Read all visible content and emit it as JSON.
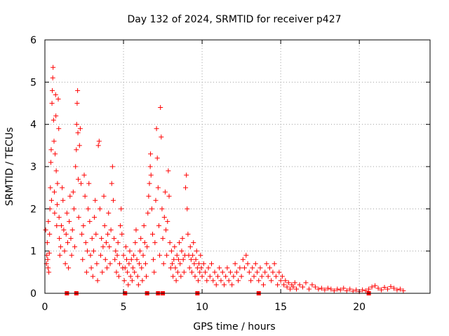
{
  "chart_data": {
    "type": "scatter",
    "title": "Day 132 of 2024, SRMTID for receiver p427",
    "xlabel": "GPS time / hours",
    "ylabel": "SRMTID / TECUs",
    "xlim": [
      0,
      24.5
    ],
    "ylim": [
      0,
      6
    ],
    "xticks": [
      0,
      5,
      10,
      15,
      20
    ],
    "yticks": [
      0,
      1,
      2,
      3,
      4,
      5,
      6
    ],
    "grid": true,
    "marker": "plus",
    "series": [
      {
        "name": "SRMTID",
        "color": "#ff0000",
        "points": [
          [
            0.05,
            1.5
          ],
          [
            0.1,
            0.7
          ],
          [
            0.12,
            0.9
          ],
          [
            0.15,
            1.2
          ],
          [
            0.18,
            0.8
          ],
          [
            0.2,
            0.6
          ],
          [
            0.22,
            1.7
          ],
          [
            0.25,
            0.5
          ],
          [
            0.28,
            0.95
          ],
          [
            0.3,
            1.4
          ],
          [
            0.32,
            2.0
          ],
          [
            0.35,
            2.5
          ],
          [
            0.38,
            3.1
          ],
          [
            0.4,
            3.4
          ],
          [
            0.42,
            2.2
          ],
          [
            0.45,
            4.5
          ],
          [
            0.47,
            4.8
          ],
          [
            0.5,
            5.1
          ],
          [
            0.52,
            5.35
          ],
          [
            0.55,
            4.1
          ],
          [
            0.58,
            3.6
          ],
          [
            0.6,
            2.4
          ],
          [
            0.62,
            1.9
          ],
          [
            0.65,
            3.3
          ],
          [
            0.68,
            4.7
          ],
          [
            0.7,
            4.2
          ],
          [
            0.72,
            2.9
          ],
          [
            0.75,
            1.6
          ],
          [
            0.78,
            2.1
          ],
          [
            0.8,
            2.6
          ],
          [
            0.85,
            4.6
          ],
          [
            0.88,
            3.9
          ],
          [
            0.9,
            1.8
          ],
          [
            0.92,
            1.3
          ],
          [
            0.95,
            0.9
          ],
          [
            1.0,
            1.1
          ],
          [
            1.05,
            1.6
          ],
          [
            1.1,
            2.5
          ],
          [
            1.15,
            2.2
          ],
          [
            1.2,
            1.5
          ],
          [
            1.25,
            1.0
          ],
          [
            1.3,
            0.7
          ],
          [
            1.35,
            1.4
          ],
          [
            1.4,
            1.9
          ],
          [
            1.45,
            1.2
          ],
          [
            1.5,
            0.6
          ],
          [
            1.55,
            1.7
          ],
          [
            1.6,
            2.3
          ],
          [
            1.65,
            1.3
          ],
          [
            1.7,
            0.9
          ],
          [
            1.75,
            1.5
          ],
          [
            1.8,
            2.4
          ],
          [
            1.85,
            2.0
          ],
          [
            1.9,
            1.1
          ],
          [
            1.95,
            3.0
          ],
          [
            2.0,
            3.4
          ],
          [
            2.02,
            4.0
          ],
          [
            2.05,
            4.5
          ],
          [
            2.08,
            4.8
          ],
          [
            2.1,
            3.8
          ],
          [
            2.12,
            2.7
          ],
          [
            2.15,
            1.8
          ],
          [
            2.2,
            3.5
          ],
          [
            2.25,
            3.9
          ],
          [
            2.3,
            2.6
          ],
          [
            2.35,
            1.4
          ],
          [
            2.4,
            0.8
          ],
          [
            2.45,
            1.6
          ],
          [
            2.5,
            2.8
          ],
          [
            2.55,
            2.3
          ],
          [
            2.6,
            1.2
          ],
          [
            2.65,
            0.5
          ],
          [
            2.7,
            1.0
          ],
          [
            2.75,
            2.0
          ],
          [
            2.8,
            2.6
          ],
          [
            2.85,
            1.7
          ],
          [
            2.9,
            0.9
          ],
          [
            2.95,
            0.6
          ],
          [
            3.0,
            1.3
          ],
          [
            3.05,
            0.4
          ],
          [
            3.1,
            1.0
          ],
          [
            3.15,
            1.8
          ],
          [
            3.2,
            2.2
          ],
          [
            3.25,
            1.4
          ],
          [
            3.3,
            0.7
          ],
          [
            3.35,
            0.3
          ],
          [
            3.4,
            3.5
          ],
          [
            3.45,
            3.6
          ],
          [
            3.5,
            2.0
          ],
          [
            3.55,
            0.9
          ],
          [
            3.6,
            1.3
          ],
          [
            3.65,
            0.5
          ],
          [
            3.7,
            1.1
          ],
          [
            3.75,
            2.3
          ],
          [
            3.8,
            1.6
          ],
          [
            3.85,
            0.8
          ],
          [
            3.9,
            1.2
          ],
          [
            3.95,
            0.6
          ],
          [
            4.0,
            1.4
          ],
          [
            4.05,
            1.9
          ],
          [
            4.1,
            1.1
          ],
          [
            4.15,
            0.7
          ],
          [
            4.2,
            1.5
          ],
          [
            4.25,
            2.6
          ],
          [
            4.3,
            3.0
          ],
          [
            4.35,
            2.2
          ],
          [
            4.4,
            1.3
          ],
          [
            4.45,
            0.8
          ],
          [
            4.5,
            1.0
          ],
          [
            4.55,
            0.5
          ],
          [
            4.6,
            0.9
          ],
          [
            4.65,
            1.2
          ],
          [
            4.7,
            0.4
          ],
          [
            4.75,
            0.7
          ],
          [
            4.8,
            1.6
          ],
          [
            4.85,
            2.0
          ],
          [
            4.9,
            1.4
          ],
          [
            4.95,
            0.6
          ],
          [
            5.0,
            0.9
          ],
          [
            5.05,
            0.3
          ],
          [
            5.1,
            0.6
          ],
          [
            5.15,
            1.1
          ],
          [
            5.2,
            0.8
          ],
          [
            5.25,
            0.5
          ],
          [
            5.3,
            0.2
          ],
          [
            5.35,
            0.7
          ],
          [
            5.4,
            1.0
          ],
          [
            5.45,
            0.4
          ],
          [
            5.5,
            0.8
          ],
          [
            5.55,
            0.3
          ],
          [
            5.6,
            0.6
          ],
          [
            5.65,
            0.9
          ],
          [
            5.7,
            0.5
          ],
          [
            5.75,
            1.2
          ],
          [
            5.8,
            1.5
          ],
          [
            5.85,
            0.8
          ],
          [
            5.9,
            0.4
          ],
          [
            5.95,
            0.2
          ],
          [
            6.0,
            0.7
          ],
          [
            6.05,
            1.0
          ],
          [
            6.1,
            1.3
          ],
          [
            6.15,
            0.6
          ],
          [
            6.2,
            0.3
          ],
          [
            6.25,
            0.9
          ],
          [
            6.3,
            1.6
          ],
          [
            6.35,
            1.2
          ],
          [
            6.4,
            0.7
          ],
          [
            6.45,
            0.4
          ],
          [
            6.5,
            1.1
          ],
          [
            6.55,
            1.9
          ],
          [
            6.6,
            2.3
          ],
          [
            6.65,
            2.6
          ],
          [
            6.7,
            3.0
          ],
          [
            6.72,
            3.3
          ],
          [
            6.75,
            2.8
          ],
          [
            6.8,
            2.0
          ],
          [
            6.85,
            1.4
          ],
          [
            6.9,
            0.8
          ],
          [
            6.95,
            0.5
          ],
          [
            7.0,
            1.2
          ],
          [
            7.05,
            2.2
          ],
          [
            7.1,
            3.9
          ],
          [
            7.15,
            3.2
          ],
          [
            7.2,
            2.5
          ],
          [
            7.25,
            1.6
          ],
          [
            7.3,
            0.9
          ],
          [
            7.35,
            4.4
          ],
          [
            7.4,
            3.7
          ],
          [
            7.45,
            2.0
          ],
          [
            7.5,
            1.3
          ],
          [
            7.55,
            0.7
          ],
          [
            7.6,
            1.8
          ],
          [
            7.65,
            2.4
          ],
          [
            7.7,
            1.5
          ],
          [
            7.75,
            0.9
          ],
          [
            7.8,
            1.7
          ],
          [
            7.85,
            2.9
          ],
          [
            7.9,
            2.3
          ],
          [
            7.95,
            1.2
          ],
          [
            8.0,
            0.6
          ],
          [
            8.05,
            1.0
          ],
          [
            8.1,
            0.7
          ],
          [
            8.15,
            0.4
          ],
          [
            8.2,
            0.8
          ],
          [
            8.25,
            1.1
          ],
          [
            8.3,
            0.6
          ],
          [
            8.35,
            0.3
          ],
          [
            8.4,
            0.9
          ],
          [
            8.45,
            0.5
          ],
          [
            8.5,
            0.8
          ],
          [
            8.55,
            1.2
          ],
          [
            8.6,
            0.7
          ],
          [
            8.65,
            0.4
          ],
          [
            8.7,
            1.0
          ],
          [
            8.75,
            1.3
          ],
          [
            8.8,
            0.8
          ],
          [
            8.85,
            0.5
          ],
          [
            8.9,
            0.9
          ],
          [
            8.95,
            2.5
          ],
          [
            9.0,
            2.8
          ],
          [
            9.05,
            2.0
          ],
          [
            9.1,
            1.4
          ],
          [
            9.15,
            0.9
          ],
          [
            9.2,
            0.6
          ],
          [
            9.25,
            1.1
          ],
          [
            9.3,
            0.8
          ],
          [
            9.35,
            0.5
          ],
          [
            9.4,
            0.9
          ],
          [
            9.45,
            1.2
          ],
          [
            9.5,
            0.7
          ],
          [
            9.55,
            0.4
          ],
          [
            9.6,
            0.8
          ],
          [
            9.65,
            1.0
          ],
          [
            9.7,
            0.6
          ],
          [
            9.75,
            0.3
          ],
          [
            9.8,
            0.7
          ],
          [
            9.85,
            0.5
          ],
          [
            9.9,
            0.9
          ],
          [
            9.95,
            0.6
          ],
          [
            10.0,
            0.4
          ],
          [
            10.1,
            0.7
          ],
          [
            10.2,
            0.5
          ],
          [
            10.3,
            0.3
          ],
          [
            10.4,
            0.6
          ],
          [
            10.5,
            0.4
          ],
          [
            10.6,
            0.7
          ],
          [
            10.7,
            0.3
          ],
          [
            10.8,
            0.5
          ],
          [
            10.9,
            0.2
          ],
          [
            11.0,
            0.4
          ],
          [
            11.1,
            0.6
          ],
          [
            11.2,
            0.3
          ],
          [
            11.3,
            0.5
          ],
          [
            11.4,
            0.2
          ],
          [
            11.5,
            0.4
          ],
          [
            11.6,
            0.6
          ],
          [
            11.7,
            0.3
          ],
          [
            11.8,
            0.5
          ],
          [
            11.9,
            0.2
          ],
          [
            12.0,
            0.4
          ],
          [
            12.1,
            0.7
          ],
          [
            12.2,
            0.5
          ],
          [
            12.3,
            0.3
          ],
          [
            12.4,
            0.6
          ],
          [
            12.5,
            0.4
          ],
          [
            12.6,
            0.8
          ],
          [
            12.7,
            0.6
          ],
          [
            12.8,
            0.9
          ],
          [
            12.9,
            0.7
          ],
          [
            13.0,
            0.5
          ],
          [
            13.1,
            0.3
          ],
          [
            13.2,
            0.6
          ],
          [
            13.3,
            0.4
          ],
          [
            13.4,
            0.7
          ],
          [
            13.5,
            0.5
          ],
          [
            13.6,
            0.3
          ],
          [
            13.7,
            0.6
          ],
          [
            13.8,
            0.4
          ],
          [
            13.9,
            0.2
          ],
          [
            14.0,
            0.5
          ],
          [
            14.1,
            0.7
          ],
          [
            14.2,
            0.4
          ],
          [
            14.3,
            0.6
          ],
          [
            14.4,
            0.3
          ],
          [
            14.5,
            0.5
          ],
          [
            14.6,
            0.7
          ],
          [
            14.7,
            0.4
          ],
          [
            14.8,
            0.2
          ],
          [
            14.9,
            0.5
          ],
          [
            15.0,
            0.3
          ],
          [
            15.1,
            0.4
          ],
          [
            15.2,
            0.2
          ],
          [
            15.3,
            0.3
          ],
          [
            15.4,
            0.15
          ],
          [
            15.5,
            0.25
          ],
          [
            15.6,
            0.1
          ],
          [
            15.7,
            0.2
          ],
          [
            15.8,
            0.15
          ],
          [
            15.9,
            0.25
          ],
          [
            16.0,
            0.1
          ],
          [
            16.2,
            0.2
          ],
          [
            16.4,
            0.15
          ],
          [
            16.6,
            0.25
          ],
          [
            16.8,
            0.1
          ],
          [
            17.0,
            0.2
          ],
          [
            17.2,
            0.15
          ],
          [
            17.4,
            0.1
          ],
          [
            17.6,
            0.12
          ],
          [
            17.8,
            0.08
          ],
          [
            18.0,
            0.12
          ],
          [
            18.2,
            0.1
          ],
          [
            18.4,
            0.06
          ],
          [
            18.6,
            0.1
          ],
          [
            18.8,
            0.08
          ],
          [
            19.0,
            0.12
          ],
          [
            19.2,
            0.06
          ],
          [
            19.4,
            0.1
          ],
          [
            19.6,
            0.05
          ],
          [
            19.8,
            0.08
          ],
          [
            20.0,
            0.04
          ],
          [
            20.2,
            0.08
          ],
          [
            20.4,
            0.06
          ],
          [
            20.6,
            0.1
          ],
          [
            20.8,
            0.15
          ],
          [
            21.0,
            0.18
          ],
          [
            21.2,
            0.12
          ],
          [
            21.4,
            0.08
          ],
          [
            21.6,
            0.14
          ],
          [
            21.8,
            0.1
          ],
          [
            22.0,
            0.16
          ],
          [
            22.2,
            0.12
          ],
          [
            22.4,
            0.08
          ],
          [
            22.6,
            0.1
          ],
          [
            22.8,
            0.06
          ]
        ]
      }
    ],
    "baseline_points": [
      [
        1.4,
        0
      ],
      [
        2.0,
        0
      ],
      [
        5.1,
        0
      ],
      [
        6.5,
        0
      ],
      [
        7.2,
        0
      ],
      [
        7.5,
        0
      ],
      [
        9.7,
        0
      ],
      [
        13.6,
        0
      ],
      [
        20.6,
        0
      ]
    ]
  }
}
